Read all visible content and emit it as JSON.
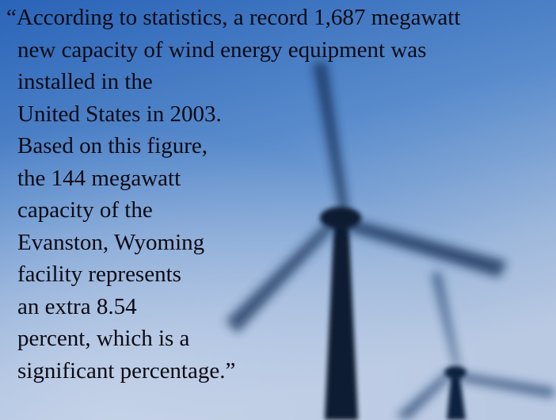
{
  "quote": {
    "lines": [
      "“According to statistics, a record 1,687 megawatt",
      "new capacity of wind energy equipment was",
      "installed in the",
      "United States in 2003.",
      "Based on this figure,",
      "the 144 megawatt",
      "capacity of the",
      "Evanston, Wyoming",
      "facility represents",
      "an extra 8.54",
      "percent, which is a",
      "significant percentage.”"
    ]
  }
}
